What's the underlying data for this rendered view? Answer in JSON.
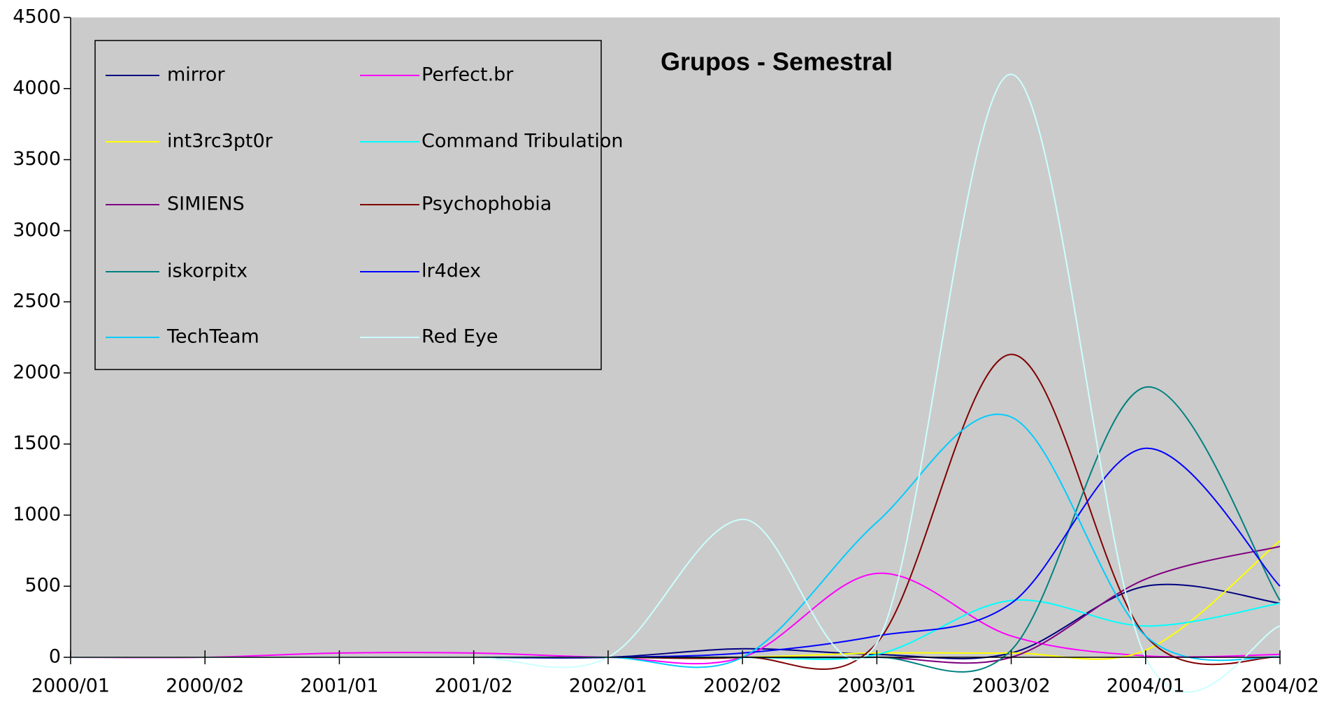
{
  "chart_data": {
    "type": "line",
    "title": "Grupos - Semestral",
    "categories": [
      "2000/01",
      "2000/02",
      "2001/01",
      "2001/02",
      "2002/01",
      "2002/02",
      "2003/01",
      "2003/02",
      "2004/01",
      "2004/02"
    ],
    "ylim": [
      0,
      4500
    ],
    "yticks": [
      0,
      500,
      1000,
      1500,
      2000,
      2500,
      3000,
      3500,
      4000,
      4500
    ],
    "smooth": true,
    "series": [
      {
        "name": "mirror",
        "color": "#000080",
        "values": [
          0,
          0,
          0,
          0,
          0,
          60,
          20,
          30,
          500,
          380
        ]
      },
      {
        "name": "Perfect.br",
        "color": "#ff00ff",
        "values": [
          0,
          0,
          30,
          30,
          0,
          0,
          590,
          150,
          10,
          20
        ]
      },
      {
        "name": "int3rc3pt0r",
        "color": "#ffff00",
        "values": [
          0,
          0,
          0,
          0,
          0,
          0,
          30,
          30,
          50,
          820
        ]
      },
      {
        "name": "Command Tribulation",
        "color": "#00ffff",
        "values": [
          0,
          0,
          0,
          0,
          0,
          0,
          20,
          400,
          220,
          380
        ]
      },
      {
        "name": "SIMIENS",
        "color": "#800080",
        "values": [
          0,
          0,
          0,
          0,
          0,
          0,
          0,
          0,
          550,
          780
        ]
      },
      {
        "name": "Psychophobia",
        "color": "#800000",
        "values": [
          0,
          0,
          0,
          0,
          0,
          0,
          100,
          2130,
          150,
          0
        ]
      },
      {
        "name": "iskorpitx",
        "color": "#008080",
        "values": [
          0,
          0,
          0,
          0,
          0,
          0,
          0,
          50,
          1900,
          400
        ]
      },
      {
        "name": "lr4dex",
        "color": "#0000ff",
        "values": [
          0,
          0,
          0,
          0,
          0,
          30,
          150,
          380,
          1470,
          500
        ]
      },
      {
        "name": "TechTeam",
        "color": "#00ccff",
        "values": [
          0,
          0,
          0,
          0,
          0,
          0,
          950,
          1690,
          150,
          0
        ]
      },
      {
        "name": "Red Eye",
        "color": "#ccffff",
        "values": [
          0,
          0,
          0,
          0,
          0,
          970,
          100,
          4100,
          0,
          220
        ]
      }
    ]
  }
}
